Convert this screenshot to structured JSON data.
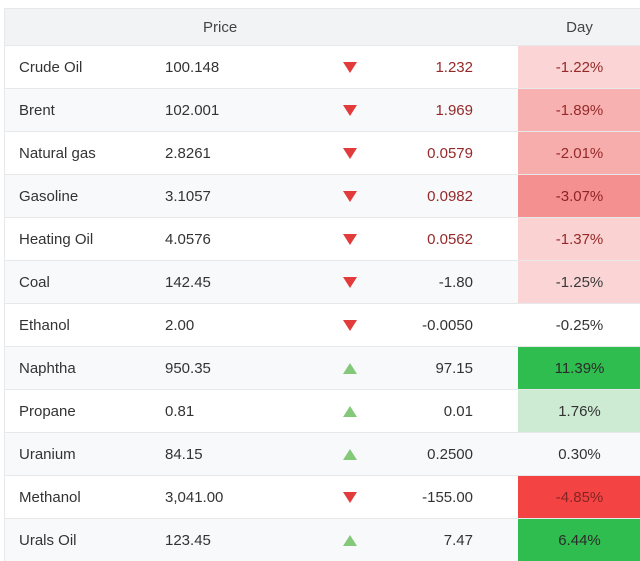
{
  "header": {
    "price_label": "Price",
    "day_label": "Day"
  },
  "colors": {
    "down_triangle": "#e23b3b",
    "up_triangle": "#84c979",
    "negative_text": "#952929",
    "default_text": "#333333",
    "header_bg": "#f2f3f4",
    "row_stripe": "#f8f9fa",
    "border": "#e7e8e9",
    "strong_green": "#2ebd4e",
    "light_green": "#cdebd3",
    "strong_red": "#f34343"
  },
  "rows": [
    {
      "name": "Crude Oil",
      "price": "100.148",
      "direction": "down",
      "change": "1.232",
      "change_color": "#952929",
      "day": "-1.22%",
      "day_bg": "#fbd5d5",
      "day_color": "#952929"
    },
    {
      "name": "Brent",
      "price": "102.001",
      "direction": "down",
      "change": "1.969",
      "change_color": "#952929",
      "day": "-1.89%",
      "day_bg": "#f8b1b1",
      "day_color": "#952929"
    },
    {
      "name": "Natural gas",
      "price": "2.8261",
      "direction": "down",
      "change": "0.0579",
      "change_color": "#952929",
      "day": "-2.01%",
      "day_bg": "#f8adad",
      "day_color": "#952929"
    },
    {
      "name": "Gasoline",
      "price": "3.1057",
      "direction": "down",
      "change": "0.0982",
      "change_color": "#952929",
      "day": "-3.07%",
      "day_bg": "#f49090",
      "day_color": "#8e2525"
    },
    {
      "name": "Heating Oil",
      "price": "4.0576",
      "direction": "down",
      "change": "0.0562",
      "change_color": "#952929",
      "day": "-1.37%",
      "day_bg": "#fbd2d2",
      "day_color": "#952929"
    },
    {
      "name": "Coal",
      "price": "142.45",
      "direction": "down",
      "change": "-1.80",
      "change_color": "#333333",
      "day": "-1.25%",
      "day_bg": "#fbd5d5",
      "day_color": "#3a3a3a"
    },
    {
      "name": "Ethanol",
      "price": "2.00",
      "direction": "down",
      "change": "-0.0050",
      "change_color": "#333333",
      "day": "-0.25%",
      "day_bg": "",
      "day_color": "#333333"
    },
    {
      "name": "Naphtha",
      "price": "950.35",
      "direction": "up",
      "change": "97.15",
      "change_color": "#333333",
      "day": "11.39%",
      "day_bg": "#2ebd4e",
      "day_color": "#2b2b2b"
    },
    {
      "name": "Propane",
      "price": "0.81",
      "direction": "up",
      "change": "0.01",
      "change_color": "#333333",
      "day": "1.76%",
      "day_bg": "#cdebd3",
      "day_color": "#333333"
    },
    {
      "name": "Uranium",
      "price": "84.15",
      "direction": "up",
      "change": "0.2500",
      "change_color": "#333333",
      "day": "0.30%",
      "day_bg": "",
      "day_color": "#333333"
    },
    {
      "name": "Methanol",
      "price": "3,041.00",
      "direction": "down",
      "change": "-155.00",
      "change_color": "#333333",
      "day": "-4.85%",
      "day_bg": "#f34343",
      "day_color": "#862424"
    },
    {
      "name": "Urals Oil",
      "price": "123.45",
      "direction": "up",
      "change": "7.47",
      "change_color": "#333333",
      "day": "6.44%",
      "day_bg": "#2ebd4e",
      "day_color": "#2b2b2b"
    }
  ]
}
